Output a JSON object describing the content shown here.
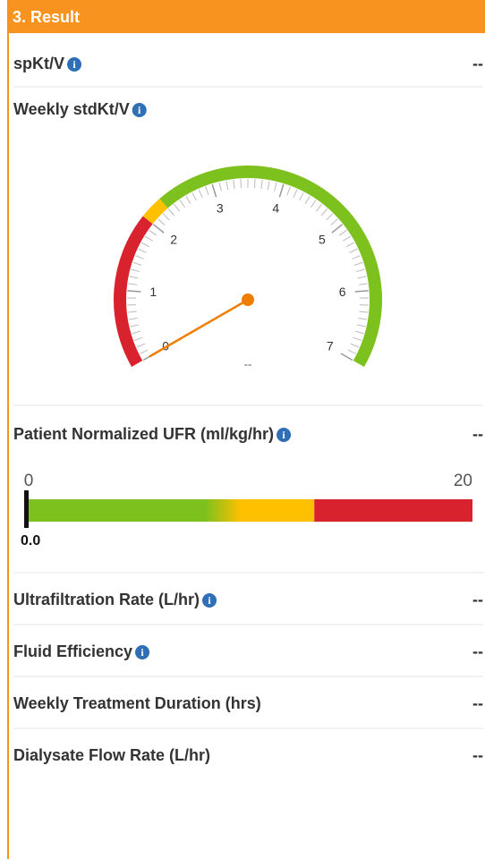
{
  "header": {
    "title": "3. Result"
  },
  "rows": [
    {
      "label": "spKt/V",
      "value": "--",
      "info": true
    },
    {
      "label": "Weekly stdKt/V",
      "info": true
    },
    {
      "label": "Patient Normalized UFR (ml/kg/hr)",
      "value": "--",
      "info": true
    },
    {
      "label": "Ultrafiltration Rate (L/hr)",
      "value": "--",
      "info": true
    },
    {
      "label": "Fluid Efficiency",
      "value": "--",
      "info": true
    },
    {
      "label": "Weekly Treatment Duration (hrs)",
      "value": "--",
      "info": false
    },
    {
      "label": "Dialysate Flow Rate (L/hr)",
      "value": "--",
      "info": false
    }
  ],
  "gauge": {
    "min": 0,
    "max": 7,
    "ticks": [
      0,
      1,
      2,
      3,
      4,
      5,
      6,
      7
    ],
    "minor_ticks_per_unit": 10,
    "bands": [
      {
        "from": 0,
        "to": 2,
        "color": "#d8232f"
      },
      {
        "from": 2,
        "to": 2.3,
        "color": "#ffc000"
      },
      {
        "from": 2.3,
        "to": 7,
        "color": "#7dc11e"
      }
    ],
    "needle": 0,
    "needle_color": "#f07d00",
    "value_label": "--"
  },
  "ufr_bar": {
    "min": 0,
    "max": 20,
    "min_label": "0",
    "max_label": "20",
    "bands": [
      {
        "from": 0,
        "to": 9.6,
        "color": "#7dc11e",
        "fade_from": 8,
        "fade_color": "#ffc000"
      },
      {
        "from": 9.6,
        "to": 12.9,
        "color": "#ffc000"
      },
      {
        "from": 12.9,
        "to": 20,
        "color": "#d8232f"
      }
    ],
    "marker": {
      "value": 0,
      "label": "0.0"
    }
  }
}
